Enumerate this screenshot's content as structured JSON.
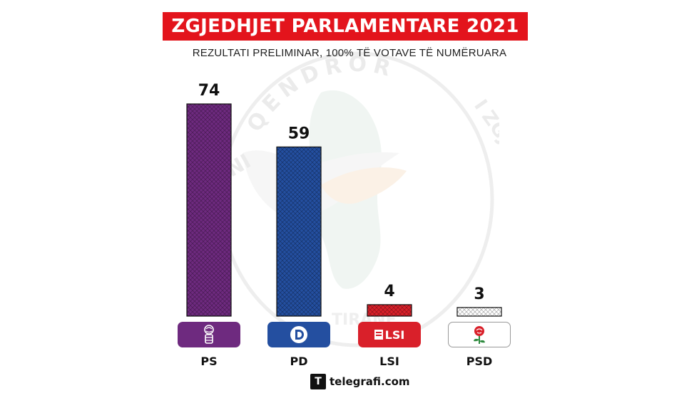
{
  "header": {
    "title": "ZGJEDHJET PARLAMENTARE 2021",
    "subtitle": "REZULTATI PRELIMINAR, 100% TË VOTAVE TË NUMËRUARA"
  },
  "watermark": {
    "text_top": "QENDROR",
    "text_left": "NI",
    "text_right": "I  ZGJEDHJEVE",
    "text_bottom": "TIRANË"
  },
  "chart_data": {
    "type": "bar",
    "categories": [
      "PS",
      "PD",
      "LSI",
      "PSD"
    ],
    "values": [
      74,
      59,
      4,
      3
    ],
    "colors": [
      "#6e2a7f",
      "#244fa0",
      "#d9202a",
      "#ffffff"
    ],
    "title": "ZGJEDHJET PARLAMENTARE 2021",
    "subtitle": "REZULTATI PRELIMINAR, 100% TË VOTAVE TË NUMËRUARA",
    "xlabel": "",
    "ylabel": "",
    "ylim": [
      0,
      74
    ],
    "grid": false,
    "legend": "none"
  },
  "logos": [
    {
      "party": "PS",
      "icon": "rose-fist-icon",
      "bg": "#6e2a7f"
    },
    {
      "party": "PD",
      "icon": "pd-d-icon",
      "bg": "#244fa0"
    },
    {
      "party": "LSI",
      "icon": "lsi-logo-icon",
      "text": "LSI",
      "bg": "#d9202a"
    },
    {
      "party": "PSD",
      "icon": "rose-icon",
      "bg": "#ffffff"
    }
  ],
  "footer": {
    "mark": "T",
    "text": "telegrafi.com"
  }
}
